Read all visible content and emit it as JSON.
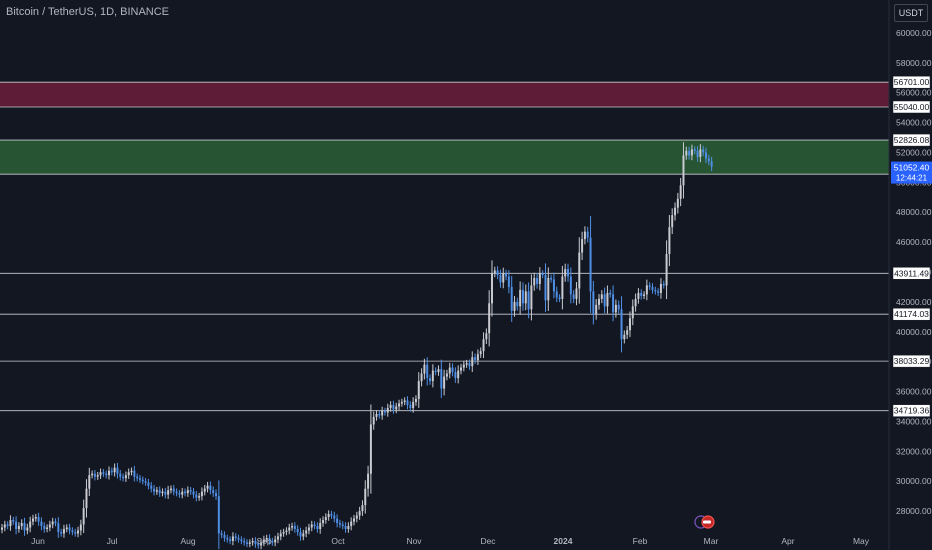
{
  "header": {
    "symbol_title": "Bitcoin / TetherUS, 1D, BINANCE",
    "currency_button": "USDT"
  },
  "colors": {
    "background": "#131722",
    "up": "#c9cbd1",
    "down": "#4f8fe6",
    "resistance_zone": "#7a1f3d",
    "support_zone": "#2f6b3a",
    "price_tag": "#2962ff"
  },
  "chart_data": {
    "type": "candlestick",
    "ylim": [
      26600,
      62200
    ],
    "y_ticks": [
      28000,
      30000,
      32000,
      34000,
      36000,
      38000,
      40000,
      42000,
      44000,
      46000,
      48000,
      50000,
      52000,
      54000,
      56000,
      58000,
      60000
    ],
    "x_ticks": [
      "Jun",
      "Jul",
      "Aug",
      "Sep",
      "Oct",
      "Nov",
      "Dec",
      "2024",
      "Feb",
      "Mar",
      "Apr",
      "May"
    ],
    "horizontal_levels": [
      56701.0,
      55040.0,
      52826.08,
      50545.19,
      43911.49,
      41174.03,
      38033.29,
      34719.36
    ],
    "zones": [
      {
        "name": "resistance",
        "from": 55040.0,
        "to": 56701.0
      },
      {
        "name": "support",
        "from": 50545.19,
        "to": 52826.08
      }
    ],
    "current_price": {
      "price": "51052.40",
      "countdown": "12:44:21",
      "value": 51052.4
    },
    "closes": [
      26900,
      27100,
      27000,
      27400,
      27300,
      26800,
      27000,
      27200,
      26700,
      26900,
      27300,
      27500,
      27600,
      27300,
      27000,
      26800,
      26900,
      27100,
      27300,
      27200,
      26600,
      26500,
      26800,
      26900,
      26700,
      26600,
      26500,
      26700,
      27100,
      28200,
      29500,
      30400,
      30500,
      30300,
      30400,
      30600,
      30500,
      30400,
      30700,
      30600,
      30900,
      30500,
      30300,
      30200,
      30400,
      30600,
      30700,
      30300,
      30200,
      30100,
      30000,
      29900,
      29700,
      29500,
      29300,
      29400,
      29200,
      29300,
      29100,
      29400,
      29500,
      29300,
      29200,
      29100,
      29300,
      29200,
      29400,
      29300,
      29100,
      28900,
      29000,
      29300,
      29500,
      29700,
      29400,
      29200,
      29000,
      26500,
      26400,
      26200,
      26100,
      26000,
      26300,
      26200,
      26100,
      26000,
      25900,
      25800,
      25900,
      26000,
      25800,
      25700,
      25900,
      26100,
      26200,
      26000,
      25900,
      26100,
      26300,
      26500,
      26600,
      26700,
      26900,
      27000,
      26800,
      26600,
      26300,
      26500,
      26700,
      26900,
      27100,
      27000,
      26800,
      27200,
      27400,
      27600,
      27800,
      27700,
      27500,
      27200,
      27100,
      27000,
      26800,
      27000,
      27300,
      27500,
      27700,
      28000,
      28400,
      29500,
      30500,
      33800,
      34300,
      34500,
      34400,
      34700,
      34600,
      34900,
      35100,
      34800,
      35000,
      35200,
      35300,
      35400,
      35100,
      34900,
      35300,
      35500,
      36700,
      37200,
      37800,
      36900,
      36700,
      37400,
      37300,
      37500,
      36200,
      37000,
      37200,
      37600,
      37300,
      36900,
      37400,
      37600,
      37800,
      37900,
      37700,
      38300,
      38100,
      38500,
      38700,
      39500,
      39900,
      41900,
      43900,
      44100,
      43800,
      43300,
      43900,
      43700,
      43000,
      41400,
      42000,
      41700,
      42800,
      41900,
      42700,
      41500,
      43100,
      43600,
      43200,
      43900,
      43800,
      42100,
      43600,
      43500,
      42700,
      42300,
      42200,
      43700,
      44200,
      43700,
      42500,
      42200,
      42900,
      45300,
      46200,
      46700,
      46300,
      42700,
      41200,
      41800,
      42200,
      42500,
      41700,
      42600,
      42500,
      41300,
      41800,
      41500,
      39500,
      39800,
      40100,
      40900,
      41700,
      42200,
      42600,
      42400,
      42500,
      43100,
      43000,
      42800,
      42700,
      42600,
      43200,
      43100,
      45200,
      47000,
      47800,
      48300,
      48900,
      49800,
      51800,
      52100,
      51800,
      52200,
      52100,
      51700,
      52200,
      52000,
      51600,
      51400,
      51052
    ]
  }
}
